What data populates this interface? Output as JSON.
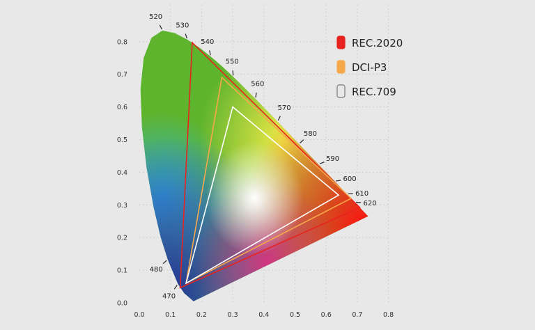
{
  "chart_data": {
    "type": "scatter",
    "xlim": [
      0,
      0.8
    ],
    "ylim": [
      0,
      0.9
    ],
    "xticks": [
      "0.0",
      "0.1",
      "0.2",
      "0.3",
      "0.4",
      "0.5",
      "0.6",
      "0.7",
      "0.8"
    ],
    "yticks": [
      "0.0",
      "0.1",
      "0.2",
      "0.3",
      "0.4",
      "0.5",
      "0.6",
      "0.7",
      "0.8"
    ],
    "grid": true,
    "legend_position": "top-right",
    "spectral_locus": [
      {
        "x": 0.1741,
        "y": 0.005
      },
      {
        "x": 0.144,
        "y": 0.0297
      },
      {
        "x": 0.1241,
        "y": 0.0578
      },
      {
        "x": 0.0913,
        "y": 0.1327
      },
      {
        "x": 0.0687,
        "y": 0.2007
      },
      {
        "x": 0.0454,
        "y": 0.295
      },
      {
        "x": 0.0235,
        "y": 0.4127
      },
      {
        "x": 0.0082,
        "y": 0.5384
      },
      {
        "x": 0.0039,
        "y": 0.6548
      },
      {
        "x": 0.0139,
        "y": 0.7502
      },
      {
        "x": 0.0389,
        "y": 0.812
      },
      {
        "x": 0.0743,
        "y": 0.8338
      },
      {
        "x": 0.1142,
        "y": 0.8262
      },
      {
        "x": 0.1547,
        "y": 0.8059
      },
      {
        "x": 0.1929,
        "y": 0.7816
      },
      {
        "x": 0.2296,
        "y": 0.7543
      },
      {
        "x": 0.2658,
        "y": 0.7243
      },
      {
        "x": 0.3016,
        "y": 0.6923
      },
      {
        "x": 0.3373,
        "y": 0.6589
      },
      {
        "x": 0.3731,
        "y": 0.6245
      },
      {
        "x": 0.4087,
        "y": 0.5896
      },
      {
        "x": 0.4441,
        "y": 0.5547
      },
      {
        "x": 0.4788,
        "y": 0.5202
      },
      {
        "x": 0.5125,
        "y": 0.4866
      },
      {
        "x": 0.5448,
        "y": 0.4544
      },
      {
        "x": 0.5752,
        "y": 0.4242
      },
      {
        "x": 0.6029,
        "y": 0.3965
      },
      {
        "x": 0.627,
        "y": 0.3725
      },
      {
        "x": 0.6482,
        "y": 0.3514
      },
      {
        "x": 0.6658,
        "y": 0.334
      },
      {
        "x": 0.6915,
        "y": 0.3083
      },
      {
        "x": 0.7347,
        "y": 0.2653
      }
    ],
    "wavelength_marks": [
      {
        "label": "470",
        "x": 0.1241,
        "y": 0.0578
      },
      {
        "label": "480",
        "x": 0.0913,
        "y": 0.1327
      },
      {
        "label": "520",
        "x": 0.0743,
        "y": 0.8338
      },
      {
        "label": "530",
        "x": 0.1547,
        "y": 0.8059
      },
      {
        "label": "540",
        "x": 0.2296,
        "y": 0.7543
      },
      {
        "label": "550",
        "x": 0.3016,
        "y": 0.6923
      },
      {
        "label": "560",
        "x": 0.3731,
        "y": 0.6245
      },
      {
        "label": "570",
        "x": 0.4441,
        "y": 0.5547
      },
      {
        "label": "580",
        "x": 0.5125,
        "y": 0.4866
      },
      {
        "label": "590",
        "x": 0.5752,
        "y": 0.4242
      },
      {
        "label": "600",
        "x": 0.627,
        "y": 0.3725
      },
      {
        "label": "610",
        "x": 0.6658,
        "y": 0.334
      },
      {
        "label": "620",
        "x": 0.6915,
        "y": 0.3083
      }
    ],
    "series": [
      {
        "name": "REC.2020",
        "color": "#e8231f",
        "points": [
          [
            0.708,
            0.292
          ],
          [
            0.17,
            0.797
          ],
          [
            0.131,
            0.046
          ]
        ]
      },
      {
        "name": "DCI-P3",
        "color": "#f7a94a",
        "points": [
          [
            0.68,
            0.32
          ],
          [
            0.265,
            0.69
          ],
          [
            0.15,
            0.06
          ]
        ]
      },
      {
        "name": "REC.709",
        "color": "#ffffff",
        "points": [
          [
            0.64,
            0.33
          ],
          [
            0.3,
            0.6
          ],
          [
            0.15,
            0.06
          ]
        ]
      }
    ]
  }
}
